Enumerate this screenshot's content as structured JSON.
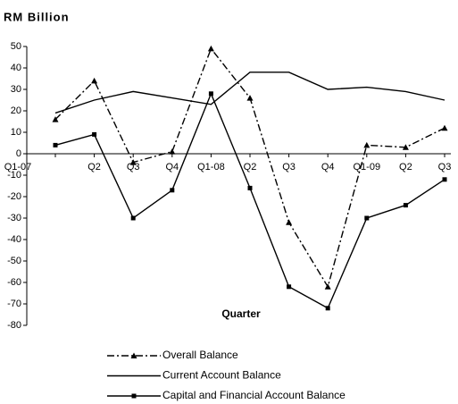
{
  "chart_data": {
    "type": "line",
    "title": "RM Billion",
    "x_label": "Quarter",
    "categories": [
      "Q1-07",
      "Q2",
      "Q3",
      "Q4",
      "Q1-08",
      "Q2",
      "Q3",
      "Q4",
      "Q1-09",
      "Q2",
      "Q3"
    ],
    "series": [
      {
        "name": "Overall Balance",
        "color": "#000000",
        "dash": "dashdot",
        "marker": "triangle",
        "values": [
          16,
          34,
          -4,
          1,
          49,
          26,
          -32,
          -62,
          4,
          3,
          12
        ]
      },
      {
        "name": "Current Account Balance",
        "color": "#000000",
        "dash": "solid",
        "values": [
          19,
          25,
          29,
          26,
          23,
          38,
          38,
          30,
          31,
          29,
          25
        ]
      },
      {
        "name": "Capital and Financial Account Balance",
        "color": "#000000",
        "dash": "solid",
        "marker": "square",
        "values": [
          4,
          9,
          -30,
          -17,
          28,
          -16,
          -62,
          -72,
          -30,
          -24,
          -12
        ]
      }
    ],
    "ylim": [
      -80,
      50
    ],
    "yticks": [
      50,
      40,
      30,
      20,
      10,
      0,
      -10,
      -20,
      -30,
      -40,
      -50,
      -60,
      -70,
      -80
    ],
    "grid": false,
    "legend": "bottom"
  }
}
